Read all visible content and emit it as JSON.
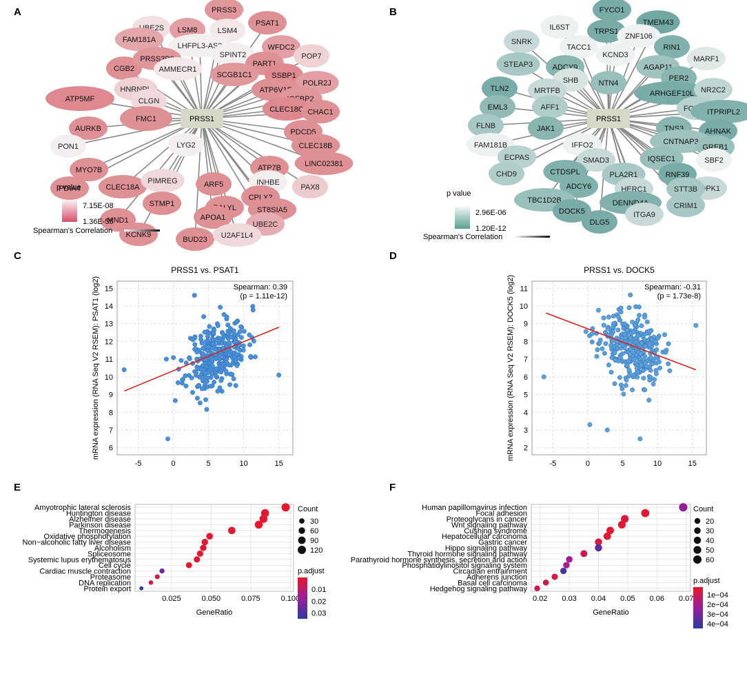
{
  "panels": {
    "A": {
      "label": "A",
      "type": "network",
      "center_node": "PRSS1",
      "nodes": [
        "PRSS3",
        "PSAT1",
        "UBE2S",
        "LSM8",
        "LSM4",
        "FAM181A",
        "LHFPL3-AS2",
        "SPINT2",
        "WFDC2",
        "POP7",
        "CGB2",
        "PRSS3P2",
        "AMMECR1",
        "PART1",
        "SCGB1C1",
        "SSBP1",
        "POLR2J",
        "HNRNPL",
        "ATP6V1F",
        "IGFBP2",
        "ATP5MF",
        "CLGN",
        "CLEC18C",
        "CHAC1",
        "FMC1",
        "AURKB",
        "PDCD5",
        "CLEC18B",
        "PON1",
        "LYG2",
        "LINC02381",
        "MYO7B",
        "ATP7B",
        "INHBE",
        "PDIA4",
        "CLEC18A",
        "PIMREG",
        "ARF5",
        "CPLX2",
        "PAX8",
        "STMP1",
        "RALYL",
        "ST8SIA5",
        "MND1",
        "APOA1",
        "UBE2C",
        "KCNK9",
        "BUD23",
        "U2AF1L4"
      ],
      "legend": {
        "title": "p value",
        "max": "7.15E-08",
        "min": "1.36E-55",
        "corr_label": "Spearman's Correlation",
        "color_low": "#fbeef1",
        "color_high": "#d6506c"
      },
      "node_color": "#e07f86"
    },
    "B": {
      "label": "B",
      "type": "network",
      "center_node": "PRSS1",
      "nodes": [
        "FYCO1",
        "IL6ST",
        "TRPS1",
        "TMEM43",
        "ZNF106",
        "SNRK",
        "TACC1",
        "KCND3",
        "RIN1",
        "MARF1",
        "STEAP3",
        "ADCY9",
        "AGAP11",
        "SHB",
        "NTN4",
        "PER2",
        "TLN2",
        "MRTFB",
        "ARHGEF10L",
        "NR2C2",
        "EML3",
        "AFF1",
        "FOXP1",
        "ITPRIPL2",
        "FLNB",
        "JAK1",
        "TNS3",
        "AHNAK",
        "FAM181B",
        "IFFO2",
        "CNTNAP3",
        "GREB1",
        "ECPAS",
        "SMAD3",
        "IQSEC1",
        "SBF2",
        "CHD9",
        "CTDSPL",
        "PLA2R1",
        "RNF39",
        "PDPK1",
        "ADCY6",
        "HERC1",
        "STT3B",
        "TBC1D2B",
        "DENND4A",
        "CRIM1",
        "DOCK5",
        "ITGA9",
        "DLG5"
      ],
      "legend": {
        "title": "p value",
        "max": "2.96E-06",
        "min": "1.20E-12",
        "corr_label": "Spearman's Correlation",
        "color_low": "#eef6f3",
        "color_high": "#5a9e92"
      },
      "node_color": "#7fb3ad"
    },
    "C": {
      "label": "C"
    },
    "D": {
      "label": "D"
    },
    "E": {
      "label": "E"
    },
    "F": {
      "label": "F"
    }
  },
  "chart_data": [
    {
      "id": "C",
      "type": "scatter",
      "title": "PRSS1 vs. PSAT1",
      "xlabel": "",
      "ylabel": "mRNA expression (RNA Seq V2 RSEM): PSAT1 (log2)",
      "xlim": [
        -8,
        17
      ],
      "ylim": [
        5.6,
        15.4
      ],
      "xticks": [
        -5,
        0,
        5,
        10,
        15
      ],
      "yticks": [
        6,
        7,
        8,
        9,
        10,
        11,
        12,
        13,
        14,
        15
      ],
      "annotation": [
        "Spearman: 0.39",
        "(p = 1.11e-12)"
      ],
      "trendline": {
        "x": [
          -7,
          15
        ],
        "y": [
          9.2,
          12.8
        ]
      },
      "n_points": 310,
      "seed": 11,
      "outliers": [
        [
          -7,
          10.4
        ],
        [
          -0.8,
          6.5
        ],
        [
          15,
          10.1
        ],
        [
          3,
          14.6
        ],
        [
          -1,
          11
        ]
      ],
      "point_color": "#4a90d9",
      "line_color": "#e02020"
    },
    {
      "id": "D",
      "type": "scatter",
      "title": "PRSS1 vs. DOCK5",
      "xlabel": "",
      "ylabel": "mRNA expression (RNA Seq V2 RSEM): DOCK5 (log2)",
      "xlim": [
        -8,
        17
      ],
      "ylim": [
        1.6,
        11.4
      ],
      "xticks": [
        -5,
        0,
        5,
        10,
        15
      ],
      "yticks": [
        2,
        3,
        4,
        5,
        6,
        7,
        8,
        9,
        10,
        11
      ],
      "annotation": [
        "Spearman: -0.31",
        "(p = 1.73e-8)"
      ],
      "trendline": {
        "x": [
          -6,
          15.5
        ],
        "y": [
          9.6,
          6.4
        ]
      },
      "n_points": 310,
      "seed": 23,
      "outliers": [
        [
          -6.3,
          6
        ],
        [
          15.5,
          8.9
        ],
        [
          0.3,
          3.3
        ],
        [
          2.8,
          3
        ],
        [
          7.5,
          2.5
        ]
      ],
      "point_color": "#5a9fd9",
      "line_color": "#e02020"
    },
    {
      "id": "E",
      "type": "dot",
      "xlabel": "GeneRatio",
      "xlim": [
        0.002,
        0.102
      ],
      "xticks": [
        0.025,
        0.05,
        0.075,
        0.1
      ],
      "xtick_labels": [
        "0.025",
        "0.050",
        "0.075",
        "0.100"
      ],
      "categories": [
        "Amyotrophic lateral sclerosis",
        "Huntington disease",
        "Alzheimer disease",
        "Parkinson disease",
        "Thermogenesis",
        "Oxidative phosphorylation",
        "Non−alcoholic fatty liver disease",
        "Alcoholism",
        "Spliceosome",
        "Systemic lupus erythematosus",
        "Cell cycle",
        "Cardiac muscle contraction",
        "Proteasome",
        "DNA replication",
        "Protein export"
      ],
      "x": [
        0.097,
        0.084,
        0.083,
        0.08,
        0.063,
        0.049,
        0.046,
        0.045,
        0.043,
        0.041,
        0.036,
        0.019,
        0.016,
        0.012,
        0.006
      ],
      "count": [
        120,
        110,
        108,
        105,
        85,
        62,
        58,
        56,
        54,
        52,
        46,
        24,
        21,
        15,
        8
      ],
      "padj": [
        0.0005,
        0.0005,
        0.0006,
        0.0006,
        0.0008,
        0.0009,
        0.001,
        0.001,
        0.001,
        0.001,
        0.0012,
        0.025,
        0.004,
        0.006,
        0.035
      ],
      "size_legend": {
        "title": "Count",
        "values": [
          30,
          60,
          90,
          120
        ]
      },
      "color_legend": {
        "title": "p.adjust",
        "ticks": [
          0.01,
          0.02,
          0.03
        ],
        "tick_labels": [
          "0.01",
          "0.02",
          "0.03"
        ],
        "range": [
          0,
          0.035
        ]
      }
    },
    {
      "id": "F",
      "type": "dot",
      "xlabel": "GeneRatio",
      "xlim": [
        0.017,
        0.0715
      ],
      "xticks": [
        0.02,
        0.03,
        0.04,
        0.05,
        0.06,
        0.07
      ],
      "xtick_labels": [
        "0.02",
        "0.03",
        "0.04",
        "0.05",
        "0.06",
        "0.07"
      ],
      "categories": [
        "Human papillomavirus infection",
        "Focal adhesion",
        "Proteoglycans in cancer",
        "Wnt signaling pathway",
        "Cushing syndrome",
        "Hepatocellular carcinoma",
        "Gastric cancer",
        "Hippo signaling pathway",
        "Thyroid hormone signaling pathway",
        "Parathyroid hormone synthesis, secretion and action",
        "Phosphatidylinositol signaling system",
        "Circadian entrainment",
        "Adherens junction",
        "Basal cell carcinoma",
        "Hedgehog signaling pathway"
      ],
      "x": [
        0.069,
        0.056,
        0.049,
        0.048,
        0.044,
        0.043,
        0.04,
        0.04,
        0.035,
        0.03,
        0.029,
        0.028,
        0.025,
        0.022,
        0.019
      ],
      "count": [
        62,
        56,
        50,
        48,
        45,
        43,
        40,
        40,
        35,
        30,
        29,
        28,
        25,
        22,
        19
      ],
      "padj": [
        0.00025,
        3e-05,
        6e-05,
        3e-05,
        3e-05,
        4e-05,
        5e-05,
        0.00036,
        8e-05,
        0.00022,
        0.0002,
        0.00038,
        6e-05,
        0.0001,
        0.0001
      ],
      "size_legend": {
        "title": "Count",
        "values": [
          20,
          30,
          40,
          50,
          60
        ]
      },
      "color_legend": {
        "title": "p.adjust",
        "ticks": [
          0.0001,
          0.0002,
          0.0003,
          0.0004
        ],
        "tick_labels": [
          "1e−04",
          "2e−04",
          "3e−04",
          "4e−04"
        ],
        "range": [
          2e-05,
          0.00045
        ]
      }
    }
  ]
}
